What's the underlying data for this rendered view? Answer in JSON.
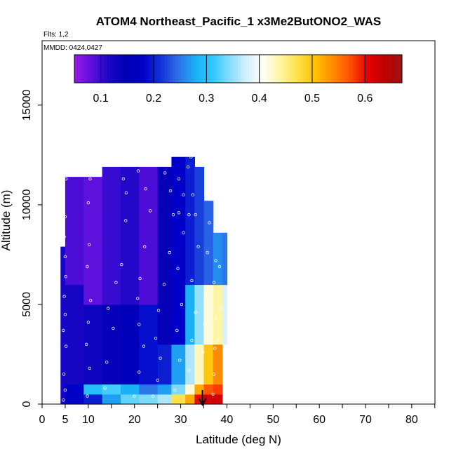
{
  "chart_data": {
    "type": "heatmap",
    "title": "ATOM4 Northeast_Pacific_1 x3Me2ButONO2_WAS",
    "flights_label": "Flts: 1,2",
    "mmdd_label": "MMDD: 0424,0427",
    "xlabel": "Latitude (deg N)",
    "ylabel": "Altitude (m)",
    "xlim": [
      0,
      85
    ],
    "ylim": [
      0,
      18000
    ],
    "x_ticks": [
      0,
      5,
      10,
      20,
      30,
      40,
      50,
      60,
      70,
      80
    ],
    "x_tick_labels": [
      "0",
      "5",
      "10",
      "20",
      "30",
      "40",
      "50",
      "60",
      "70",
      "80"
    ],
    "y_ticks": [
      0,
      5000,
      10000,
      15000
    ],
    "y_tick_labels": [
      "0",
      "5000",
      "10000",
      "15000"
    ],
    "colorbar": {
      "range": [
        0.05,
        0.67
      ],
      "ticks": [
        0.1,
        0.2,
        0.3,
        0.4,
        0.5,
        0.6
      ],
      "tick_labels": [
        "0.1",
        "0.2",
        "0.3",
        "0.4",
        "0.5",
        "0.6"
      ],
      "colors": [
        "#9a1ae6",
        "#5a10dc",
        "#1a06c6",
        "#0000b4",
        "#0000c8",
        "#1232d8",
        "#2e6ee8",
        "#1ab0f4",
        "#2cc8ff",
        "#86dcff",
        "#d6f0ff",
        "#fffff4",
        "#fff4a0",
        "#ffe040",
        "#ffc000",
        "#ff8c00",
        "#ff5000",
        "#e80000",
        "#c00000",
        "#9c1414"
      ]
    },
    "columns": [
      {
        "lat": [
          4.0,
          5.0
        ],
        "bands": [
          [
            0,
            7900,
            0.12
          ]
        ]
      },
      {
        "lat": [
          5.0,
          9.0
        ],
        "bands": [
          [
            0,
            1000,
            0.18
          ],
          [
            1000,
            6000,
            0.12
          ],
          [
            6000,
            11400,
            0.09
          ]
        ]
      },
      {
        "lat": [
          9.0,
          13.0
        ],
        "bands": [
          [
            0,
            500,
            0.2
          ],
          [
            500,
            1000,
            0.3
          ],
          [
            1000,
            5000,
            0.13
          ],
          [
            5000,
            11400,
            0.08
          ]
        ]
      },
      {
        "lat": [
          13.0,
          17.0
        ],
        "bands": [
          [
            0,
            500,
            0.27
          ],
          [
            500,
            1000,
            0.32
          ],
          [
            1000,
            5000,
            0.14
          ],
          [
            5000,
            11900,
            0.1
          ]
        ]
      },
      {
        "lat": [
          17.0,
          21.0
        ],
        "bands": [
          [
            0,
            500,
            0.33
          ],
          [
            500,
            1000,
            0.28
          ],
          [
            1000,
            5000,
            0.16
          ],
          [
            5000,
            11900,
            0.11
          ]
        ]
      },
      {
        "lat": [
          21.0,
          25.0
        ],
        "bands": [
          [
            0,
            500,
            0.34
          ],
          [
            500,
            1000,
            0.25
          ],
          [
            1000,
            5000,
            0.19
          ],
          [
            5000,
            11900,
            0.09
          ]
        ]
      },
      {
        "lat": [
          25.0,
          28.0
        ],
        "bands": [
          [
            0,
            500,
            0.36
          ],
          [
            500,
            1000,
            0.27
          ],
          [
            1000,
            3000,
            0.2
          ],
          [
            3000,
            11900,
            0.14
          ]
        ]
      },
      {
        "lat": [
          28.0,
          31.0
        ],
        "bands": [
          [
            0,
            500,
            0.47
          ],
          [
            500,
            1000,
            0.34
          ],
          [
            1000,
            3000,
            0.27
          ],
          [
            3000,
            12400,
            0.18
          ]
        ]
      },
      {
        "lat": [
          31.0,
          33.0
        ],
        "bands": [
          [
            0,
            500,
            0.52
          ],
          [
            500,
            1000,
            0.42
          ],
          [
            1000,
            3000,
            0.36
          ],
          [
            3000,
            6000,
            0.28
          ],
          [
            6000,
            12400,
            0.2
          ]
        ]
      },
      {
        "lat": [
          33.0,
          35.0
        ],
        "bands": [
          [
            0,
            500,
            0.6
          ],
          [
            500,
            1000,
            0.52
          ],
          [
            1000,
            3000,
            0.43
          ],
          [
            3000,
            6000,
            0.35
          ],
          [
            6000,
            11900,
            0.22
          ]
        ]
      },
      {
        "lat": [
          35.0,
          37.0
        ],
        "bands": [
          [
            0,
            500,
            0.62
          ],
          [
            500,
            1000,
            0.57
          ],
          [
            1000,
            3000,
            0.5
          ],
          [
            3000,
            6000,
            0.42
          ],
          [
            6000,
            10200,
            0.24
          ]
        ]
      },
      {
        "lat": [
          37.0,
          39.0
        ],
        "bands": [
          [
            0,
            500,
            0.62
          ],
          [
            500,
            1000,
            0.58
          ],
          [
            1000,
            3000,
            0.54
          ],
          [
            3000,
            6000,
            0.44
          ],
          [
            6000,
            8600,
            0.26
          ]
        ]
      },
      {
        "lat": [
          39.0,
          40.0
        ],
        "bands": [
          [
            3000,
            6000,
            0.38
          ],
          [
            6000,
            8600,
            0.25
          ]
        ]
      }
    ],
    "samples": [
      [
        4.6,
        200
      ],
      [
        5.0,
        700
      ],
      [
        4.7,
        1500
      ],
      [
        5.2,
        2900
      ],
      [
        4.6,
        3700
      ],
      [
        5.0,
        4500
      ],
      [
        4.8,
        5400
      ],
      [
        5.1,
        6400
      ],
      [
        5.0,
        7400
      ],
      [
        4.8,
        8400
      ],
      [
        5.0,
        9400
      ],
      [
        5.2,
        11300
      ],
      [
        9.8,
        400
      ],
      [
        10.3,
        1800
      ],
      [
        9.6,
        3000
      ],
      [
        10.0,
        4100
      ],
      [
        10.5,
        5200
      ],
      [
        9.8,
        6900
      ],
      [
        10.2,
        8000
      ],
      [
        10.0,
        10100
      ],
      [
        10.4,
        11300
      ],
      [
        13.6,
        800
      ],
      [
        14.0,
        2100
      ],
      [
        15.4,
        3800
      ],
      [
        14.3,
        4800
      ],
      [
        16.0,
        6100
      ],
      [
        17.2,
        7000
      ],
      [
        18.1,
        9200
      ],
      [
        18.2,
        10600
      ],
      [
        17.6,
        11300
      ],
      [
        20.0,
        400
      ],
      [
        21.0,
        1600
      ],
      [
        22.0,
        2900
      ],
      [
        21.0,
        4000
      ],
      [
        20.7,
        5300
      ],
      [
        21.2,
        6300
      ],
      [
        22.2,
        7900
      ],
      [
        23.4,
        9700
      ],
      [
        22.4,
        10800
      ],
      [
        20.8,
        11700
      ],
      [
        24.0,
        400
      ],
      [
        25.0,
        1200
      ],
      [
        25.6,
        2300
      ],
      [
        24.6,
        3300
      ],
      [
        25.2,
        4700
      ],
      [
        26.4,
        6000
      ],
      [
        27.6,
        7600
      ],
      [
        28.4,
        9500
      ],
      [
        27.8,
        10700
      ],
      [
        26.6,
        11600
      ],
      [
        28.8,
        700
      ],
      [
        29.8,
        2200
      ],
      [
        29.2,
        3700
      ],
      [
        30.2,
        5000
      ],
      [
        29.4,
        6800
      ],
      [
        30.6,
        8600
      ],
      [
        29.6,
        9600
      ],
      [
        31.8,
        9500
      ],
      [
        30.6,
        10500
      ],
      [
        29.6,
        11300
      ],
      [
        31.4,
        600
      ],
      [
        31.8,
        1700
      ],
      [
        32.4,
        3200
      ],
      [
        33.2,
        4600
      ],
      [
        32.4,
        6200
      ],
      [
        33.8,
        7900
      ],
      [
        33.2,
        9500
      ],
      [
        32.6,
        10500
      ],
      [
        31.6,
        11900
      ],
      [
        32.2,
        12400
      ],
      [
        34.4,
        1100
      ],
      [
        34.8,
        2600
      ],
      [
        35.2,
        4000
      ],
      [
        35.4,
        5600
      ],
      [
        35.8,
        7600
      ],
      [
        36.2,
        9100
      ],
      [
        36.8,
        10300
      ],
      [
        37.0,
        500
      ],
      [
        37.2,
        1500
      ],
      [
        37.4,
        2800
      ],
      [
        37.6,
        4300
      ],
      [
        37.2,
        6100
      ],
      [
        37.6,
        7200
      ],
      [
        37.4,
        8800
      ],
      [
        38.2,
        3200
      ],
      [
        38.6,
        4800
      ],
      [
        38.4,
        6900
      ]
    ],
    "arrow_lat": 34.7
  }
}
